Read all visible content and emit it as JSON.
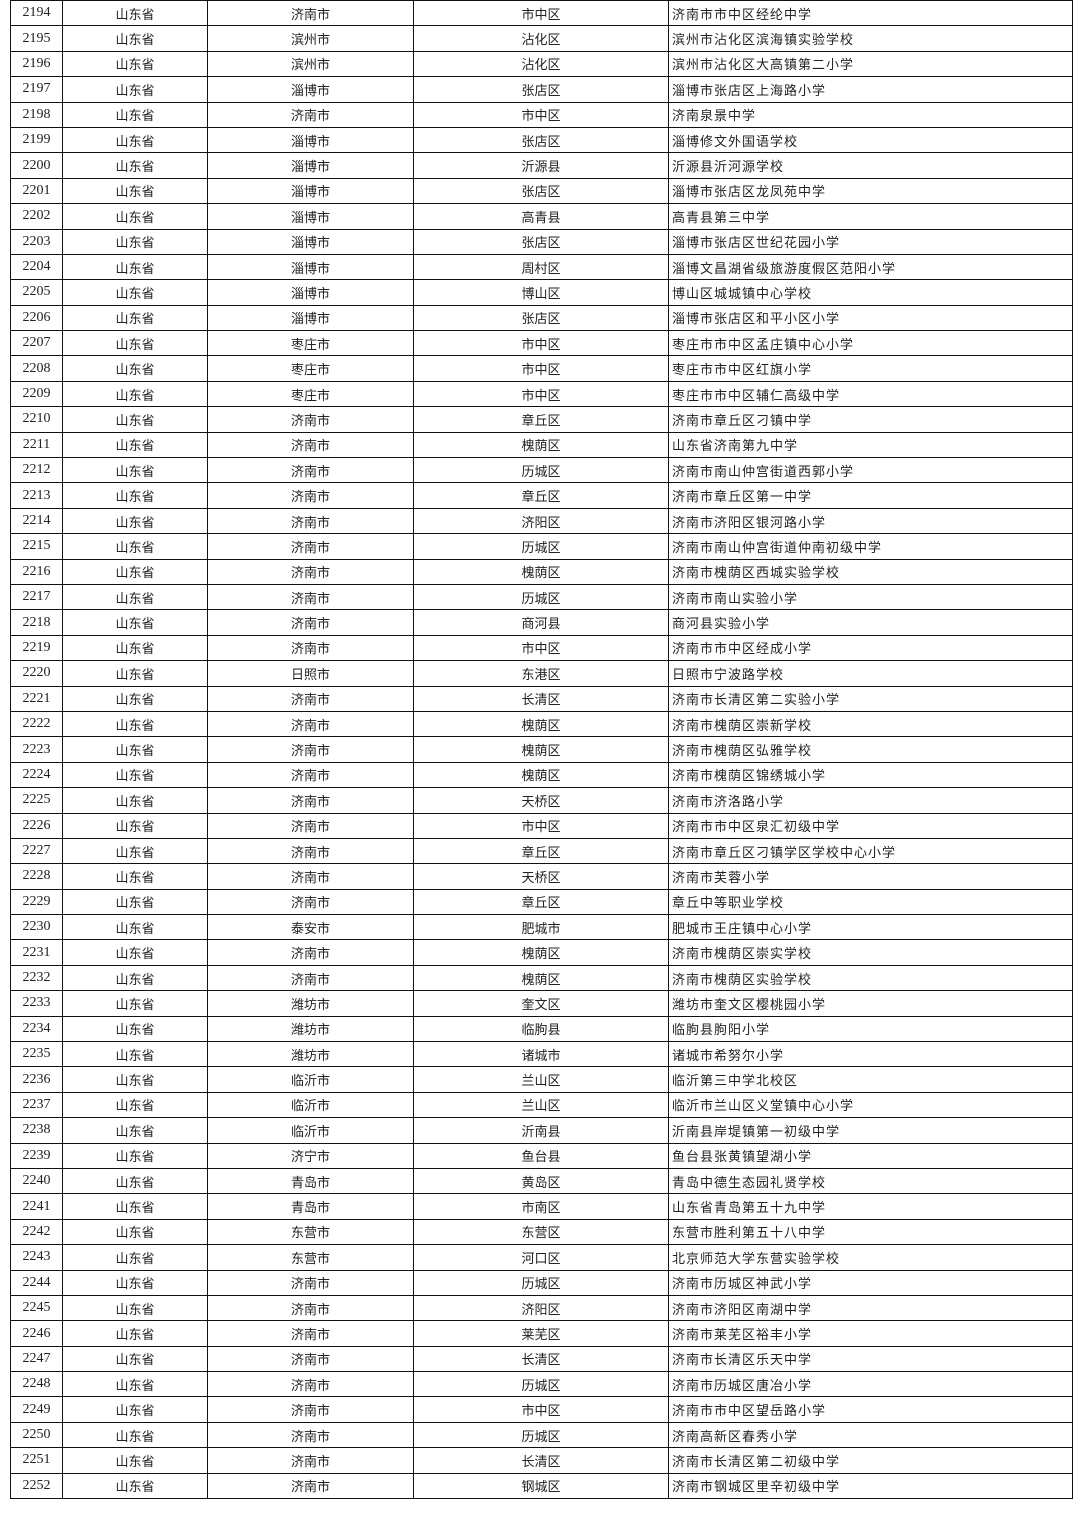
{
  "table": {
    "rows": [
      [
        "2194",
        "山东省",
        "济南市",
        "市中区",
        "济南市市中区经纶中学"
      ],
      [
        "2195",
        "山东省",
        "滨州市",
        "沾化区",
        "滨州市沾化区滨海镇实验学校"
      ],
      [
        "2196",
        "山东省",
        "滨州市",
        "沾化区",
        "滨州市沾化区大高镇第二小学"
      ],
      [
        "2197",
        "山东省",
        "淄博市",
        "张店区",
        "淄博市张店区上海路小学"
      ],
      [
        "2198",
        "山东省",
        "济南市",
        "市中区",
        "济南泉景中学"
      ],
      [
        "2199",
        "山东省",
        "淄博市",
        "张店区",
        "淄博修文外国语学校"
      ],
      [
        "2200",
        "山东省",
        "淄博市",
        "沂源县",
        "沂源县沂河源学校"
      ],
      [
        "2201",
        "山东省",
        "淄博市",
        "张店区",
        "淄博市张店区龙凤苑中学"
      ],
      [
        "2202",
        "山东省",
        "淄博市",
        "高青县",
        "高青县第三中学"
      ],
      [
        "2203",
        "山东省",
        "淄博市",
        "张店区",
        "淄博市张店区世纪花园小学"
      ],
      [
        "2204",
        "山东省",
        "淄博市",
        "周村区",
        "淄博文昌湖省级旅游度假区范阳小学"
      ],
      [
        "2205",
        "山东省",
        "淄博市",
        "博山区",
        "博山区城城镇中心学校"
      ],
      [
        "2206",
        "山东省",
        "淄博市",
        "张店区",
        "淄博市张店区和平小区小学"
      ],
      [
        "2207",
        "山东省",
        "枣庄市",
        "市中区",
        "枣庄市市中区孟庄镇中心小学"
      ],
      [
        "2208",
        "山东省",
        "枣庄市",
        "市中区",
        "枣庄市市中区红旗小学"
      ],
      [
        "2209",
        "山东省",
        "枣庄市",
        "市中区",
        "枣庄市市中区辅仁高级中学"
      ],
      [
        "2210",
        "山东省",
        "济南市",
        "章丘区",
        "济南市章丘区刁镇中学"
      ],
      [
        "2211",
        "山东省",
        "济南市",
        "槐荫区",
        "山东省济南第九中学"
      ],
      [
        "2212",
        "山东省",
        "济南市",
        "历城区",
        "济南市南山仲宫街道西郭小学"
      ],
      [
        "2213",
        "山东省",
        "济南市",
        "章丘区",
        "济南市章丘区第一中学"
      ],
      [
        "2214",
        "山东省",
        "济南市",
        "济阳区",
        "济南市济阳区银河路小学"
      ],
      [
        "2215",
        "山东省",
        "济南市",
        "历城区",
        "济南市南山仲宫街道仲南初级中学"
      ],
      [
        "2216",
        "山东省",
        "济南市",
        "槐荫区",
        "济南市槐荫区西城实验学校"
      ],
      [
        "2217",
        "山东省",
        "济南市",
        "历城区",
        "济南市南山实验小学"
      ],
      [
        "2218",
        "山东省",
        "济南市",
        "商河县",
        "商河县实验小学"
      ],
      [
        "2219",
        "山东省",
        "济南市",
        "市中区",
        "济南市市中区经成小学"
      ],
      [
        "2220",
        "山东省",
        "日照市",
        "东港区",
        "日照市宁波路学校"
      ],
      [
        "2221",
        "山东省",
        "济南市",
        "长清区",
        "济南市长清区第二实验小学"
      ],
      [
        "2222",
        "山东省",
        "济南市",
        "槐荫区",
        "济南市槐荫区崇新学校"
      ],
      [
        "2223",
        "山东省",
        "济南市",
        "槐荫区",
        "济南市槐荫区弘雅学校"
      ],
      [
        "2224",
        "山东省",
        "济南市",
        "槐荫区",
        "济南市槐荫区锦绣城小学"
      ],
      [
        "2225",
        "山东省",
        "济南市",
        "天桥区",
        "济南市济洛路小学"
      ],
      [
        "2226",
        "山东省",
        "济南市",
        "市中区",
        "济南市市中区泉汇初级中学"
      ],
      [
        "2227",
        "山东省",
        "济南市",
        "章丘区",
        "济南市章丘区刁镇学区学校中心小学"
      ],
      [
        "2228",
        "山东省",
        "济南市",
        "天桥区",
        "济南市芙蓉小学"
      ],
      [
        "2229",
        "山东省",
        "济南市",
        "章丘区",
        "章丘中等职业学校"
      ],
      [
        "2230",
        "山东省",
        "泰安市",
        "肥城市",
        "肥城市王庄镇中心小学"
      ],
      [
        "2231",
        "山东省",
        "济南市",
        "槐荫区",
        "济南市槐荫区崇实学校"
      ],
      [
        "2232",
        "山东省",
        "济南市",
        "槐荫区",
        "济南市槐荫区实验学校"
      ],
      [
        "2233",
        "山东省",
        "潍坊市",
        "奎文区",
        "潍坊市奎文区樱桃园小学"
      ],
      [
        "2234",
        "山东省",
        "潍坊市",
        "临朐县",
        "临朐县朐阳小学"
      ],
      [
        "2235",
        "山东省",
        "潍坊市",
        "诸城市",
        "诸城市希努尔小学"
      ],
      [
        "2236",
        "山东省",
        "临沂市",
        "兰山区",
        "临沂第三中学北校区"
      ],
      [
        "2237",
        "山东省",
        "临沂市",
        "兰山区",
        "临沂市兰山区义堂镇中心小学"
      ],
      [
        "2238",
        "山东省",
        "临沂市",
        "沂南县",
        "沂南县岸堤镇第一初级中学"
      ],
      [
        "2239",
        "山东省",
        "济宁市",
        "鱼台县",
        "鱼台县张黄镇望湖小学"
      ],
      [
        "2240",
        "山东省",
        "青岛市",
        "黄岛区",
        "青岛中德生态园礼贤学校"
      ],
      [
        "2241",
        "山东省",
        "青岛市",
        "市南区",
        "山东省青岛第五十九中学"
      ],
      [
        "2242",
        "山东省",
        "东营市",
        "东营区",
        "东营市胜利第五十八中学"
      ],
      [
        "2243",
        "山东省",
        "东营市",
        "河口区",
        "北京师范大学东营实验学校"
      ],
      [
        "2244",
        "山东省",
        "济南市",
        "历城区",
        "济南市历城区神武小学"
      ],
      [
        "2245",
        "山东省",
        "济南市",
        "济阳区",
        "济南市济阳区南湖中学"
      ],
      [
        "2246",
        "山东省",
        "济南市",
        "莱芜区",
        "济南市莱芜区裕丰小学"
      ],
      [
        "2247",
        "山东省",
        "济南市",
        "长清区",
        "济南市长清区乐天中学"
      ],
      [
        "2248",
        "山东省",
        "济南市",
        "历城区",
        "济南市历城区唐冶小学"
      ],
      [
        "2249",
        "山东省",
        "济南市",
        "市中区",
        "济南市市中区望岳路小学"
      ],
      [
        "2250",
        "山东省",
        "济南市",
        "历城区",
        "济南高新区春秀小学"
      ],
      [
        "2251",
        "山东省",
        "济南市",
        "长清区",
        "济南市长清区第二初级中学"
      ],
      [
        "2252",
        "山东省",
        "济南市",
        "钢城区",
        "济南市钢城区里辛初级中学"
      ]
    ]
  }
}
